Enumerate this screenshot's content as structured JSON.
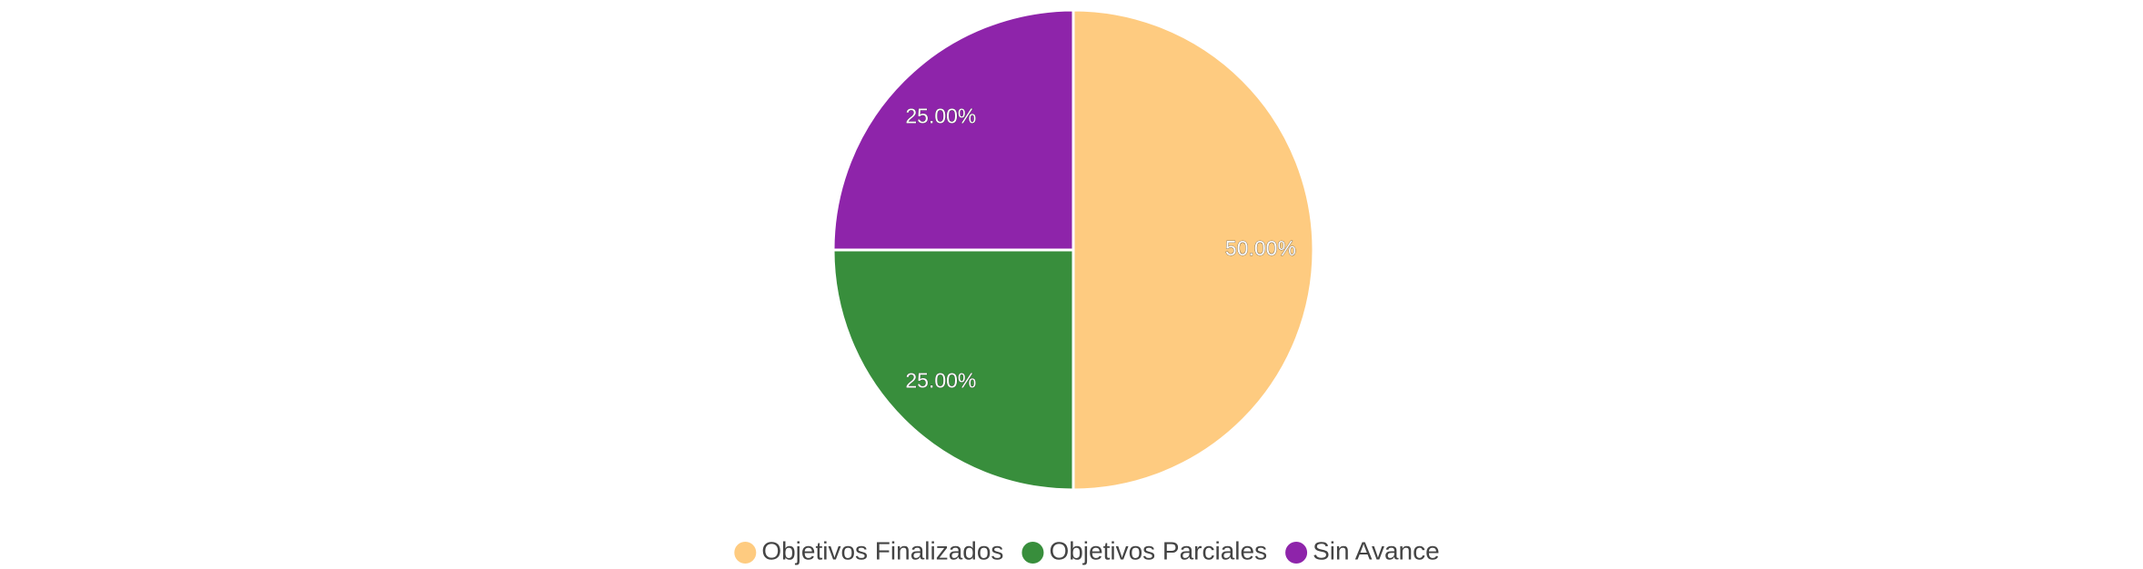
{
  "chart_data": {
    "type": "pie",
    "categories": [
      "Objetivos Finalizados",
      "Objetivos Parciales",
      "Sin Avance"
    ],
    "values": [
      50,
      25,
      25
    ],
    "value_labels": [
      "50.00%",
      "25.00%",
      "25.00%"
    ],
    "colors": [
      "#fecb80",
      "#388e3c",
      "#8e24aa"
    ],
    "legend": "bottom"
  }
}
